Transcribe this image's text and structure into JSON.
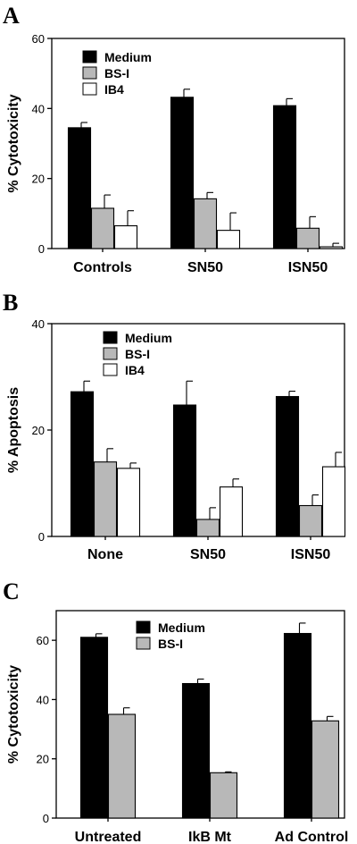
{
  "colors": {
    "Medium": "#000000",
    "BS-I": "#b8b8b8",
    "IB4": "#ffffff"
  },
  "chart_data": [
    {
      "panel": "A",
      "type": "bar",
      "ylabel": "% Cytotoxicity",
      "ylim": [
        0,
        60
      ],
      "yticks": [
        0,
        20,
        40,
        60
      ],
      "categories": [
        "Controls",
        "SN50",
        "ISN50"
      ],
      "legend_position": "top-left",
      "series": [
        {
          "name": "Medium",
          "values": [
            34.5,
            43.2,
            40.8
          ],
          "errors": [
            1.5,
            2.3,
            2.0
          ]
        },
        {
          "name": "BS-I",
          "values": [
            11.5,
            14.2,
            5.8
          ],
          "errors": [
            3.8,
            1.8,
            3.3
          ]
        },
        {
          "name": "IB4",
          "values": [
            6.5,
            5.2,
            0.5
          ],
          "errors": [
            4.3,
            5.0,
            1.0
          ]
        }
      ]
    },
    {
      "panel": "B",
      "type": "bar",
      "ylabel": "% Apoptosis",
      "ylim": [
        0,
        40
      ],
      "yticks": [
        0,
        20,
        40
      ],
      "categories": [
        "None",
        "SN50",
        "ISN50"
      ],
      "legend_position": "top-left",
      "series": [
        {
          "name": "Medium",
          "values": [
            27.2,
            24.7,
            26.3
          ],
          "errors": [
            2.0,
            4.5,
            1.0
          ]
        },
        {
          "name": "BS-I",
          "values": [
            14.0,
            3.2,
            5.8
          ],
          "errors": [
            2.5,
            2.2,
            2.0
          ]
        },
        {
          "name": "IB4",
          "values": [
            12.8,
            9.3,
            13.1
          ],
          "errors": [
            1.0,
            1.5,
            2.7
          ]
        }
      ]
    },
    {
      "panel": "C",
      "type": "bar",
      "ylabel": "% Cytotoxicity",
      "ylim": [
        0,
        70
      ],
      "yticks": [
        0,
        20,
        40,
        60
      ],
      "categories": [
        "Untreated",
        "IkB Mt",
        "Ad Control"
      ],
      "legend_position": "top-center",
      "series": [
        {
          "name": "Medium",
          "values": [
            61.0,
            45.4,
            62.3
          ],
          "errors": [
            1.2,
            1.5,
            3.5
          ]
        },
        {
          "name": "BS-I",
          "values": [
            35.0,
            15.3,
            32.8
          ],
          "errors": [
            2.2,
            0.3,
            1.5
          ]
        }
      ]
    }
  ]
}
